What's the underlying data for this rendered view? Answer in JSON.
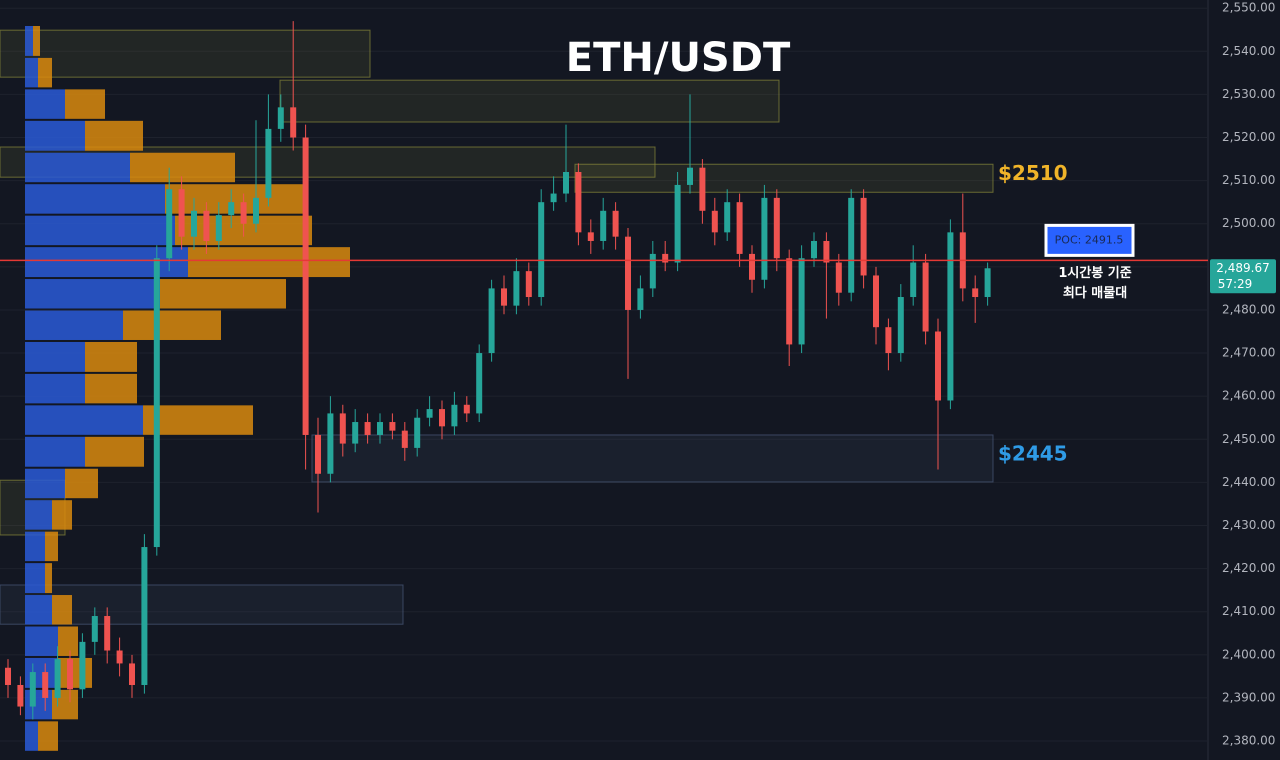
{
  "chart_data": {
    "type": "candlestick",
    "title": "ETH/USDT",
    "ylim": [
      2375.6,
      2551.9
    ],
    "yticks": [
      {
        "value": 2380,
        "label": "2,380.00"
      },
      {
        "value": 2390,
        "label": "2,390.00"
      },
      {
        "value": 2400,
        "label": "2,400.00"
      },
      {
        "value": 2410,
        "label": "2,410.00"
      },
      {
        "value": 2420,
        "label": "2,420.00"
      },
      {
        "value": 2430,
        "label": "2,430.00"
      },
      {
        "value": 2440,
        "label": "2,440.00"
      },
      {
        "value": 2450,
        "label": "2,450.00"
      },
      {
        "value": 2460,
        "label": "2,460.00"
      },
      {
        "value": 2470,
        "label": "2,470.00"
      },
      {
        "value": 2480,
        "label": "2,480.00"
      },
      {
        "value": 2490,
        "label": "2,490.00"
      },
      {
        "value": 2500,
        "label": "2,500.00"
      },
      {
        "value": 2510,
        "label": "2,510.00"
      },
      {
        "value": 2520,
        "label": "2,520.00"
      },
      {
        "value": 2530,
        "label": "2,530.00"
      },
      {
        "value": 2540,
        "label": "2,540.00"
      },
      {
        "value": 2550,
        "label": "2,550.00"
      }
    ],
    "grid": true,
    "up_color": "#26a69a",
    "down_color": "#ef5350",
    "open": [
      2397,
      2393,
      2388,
      2396,
      2390,
      2399,
      2392,
      2403,
      2409,
      2401,
      2398,
      2393,
      2425,
      2492,
      2508,
      2497,
      2503,
      2496,
      2502,
      2505,
      2500,
      2506,
      2522,
      2527,
      2520,
      2451,
      2442,
      2456,
      2449,
      2454,
      2451,
      2454,
      2452,
      2448,
      2455,
      2457,
      2453,
      2458,
      2456,
      2470,
      2485,
      2481,
      2489,
      2483,
      2505,
      2507,
      2512,
      2498,
      2496,
      2503,
      2497,
      2480,
      2485,
      2493,
      2491,
      2509,
      2513,
      2503,
      2498,
      2505,
      2493,
      2487,
      2506,
      2492,
      2472,
      2492,
      2496,
      2491,
      2484,
      2506,
      2488,
      2476,
      2470,
      2483,
      2491,
      2475,
      2459,
      2498,
      2485,
      2483
    ],
    "high": [
      2399,
      2395,
      2398,
      2398,
      2402,
      2401,
      2405,
      2411,
      2411,
      2404,
      2400,
      2428,
      2495,
      2513,
      2511,
      2506,
      2505,
      2505,
      2508,
      2507,
      2524,
      2530,
      2530,
      2547,
      2523,
      2455,
      2460,
      2458,
      2457,
      2456,
      2456,
      2456,
      2454,
      2457,
      2460,
      2459,
      2461,
      2460,
      2472,
      2487,
      2488,
      2492,
      2491,
      2508,
      2511,
      2523,
      2514,
      2501,
      2506,
      2505,
      2499,
      2488,
      2496,
      2496,
      2512,
      2530,
      2515,
      2506,
      2508,
      2507,
      2495,
      2509,
      2508,
      2494,
      2495,
      2498,
      2498,
      2493,
      2508,
      2508,
      2490,
      2478,
      2486,
      2495,
      2493,
      2478,
      2501,
      2507,
      2488,
      2491
    ],
    "low": [
      2390,
      2386,
      2385,
      2387,
      2388,
      2389,
      2390,
      2400,
      2398,
      2395,
      2390,
      2391,
      2423,
      2489,
      2494,
      2494,
      2493,
      2494,
      2499,
      2497,
      2498,
      2504,
      2519,
      2517,
      2443,
      2433,
      2440,
      2446,
      2447,
      2449,
      2449,
      2450,
      2445,
      2446,
      2453,
      2450,
      2451,
      2454,
      2454,
      2468,
      2479,
      2479,
      2481,
      2481,
      2503,
      2505,
      2495,
      2493,
      2494,
      2494,
      2464,
      2478,
      2483,
      2489,
      2489,
      2507,
      2500,
      2495,
      2496,
      2490,
      2484,
      2485,
      2489,
      2467,
      2470,
      2490,
      2478,
      2481,
      2482,
      2485,
      2472,
      2466,
      2468,
      2481,
      2472,
      2443,
      2457,
      2482,
      2477,
      2481
    ],
    "close": [
      2393,
      2388,
      2396,
      2390,
      2399,
      2392,
      2403,
      2409,
      2401,
      2398,
      2393,
      2425,
      2492,
      2508,
      2497,
      2503,
      2496,
      2502,
      2505,
      2500,
      2506,
      2522,
      2527,
      2520,
      2451,
      2442,
      2456,
      2449,
      2454,
      2451,
      2454,
      2452,
      2448,
      2455,
      2457,
      2453,
      2458,
      2456,
      2470,
      2485,
      2481,
      2489,
      2483,
      2505,
      2507,
      2512,
      2498,
      2496,
      2503,
      2497,
      2480,
      2485,
      2493,
      2491,
      2509,
      2513,
      2503,
      2498,
      2505,
      2493,
      2487,
      2506,
      2492,
      2472,
      2492,
      2496,
      2491,
      2484,
      2506,
      2488,
      2476,
      2470,
      2483,
      2491,
      2475,
      2459,
      2498,
      2485,
      2483,
      2489.67
    ],
    "volume_profile": {
      "bins": [
        2546.1,
        2538.7,
        2531.4,
        2524.1,
        2516.7,
        2509.4,
        2502.1,
        2494.8,
        2487.4,
        2480.1,
        2472.8,
        2465.4,
        2458.1,
        2450.8,
        2443.4,
        2436.1,
        2428.8,
        2421.5,
        2414.1,
        2406.8,
        2399.5,
        2392.1,
        2384.8,
        2377.5
      ],
      "buy": [
        8,
        13,
        40,
        60,
        105,
        140,
        150,
        163,
        135,
        98,
        60,
        60,
        118,
        60,
        40,
        27,
        20,
        20,
        27,
        33,
        33,
        27,
        13
      ],
      "sell": [
        7,
        14,
        40,
        58,
        105,
        140,
        137,
        162,
        126,
        98,
        52,
        52,
        110,
        59,
        33,
        20,
        13,
        7,
        20,
        20,
        34,
        26,
        20
      ],
      "buy_color": "#2a5bd7",
      "sell_color": "#d98a0e"
    },
    "zones": [
      {
        "low": 2534.0,
        "high": 2544.9,
        "color": "#8a8a3a"
      },
      {
        "low": 2523.6,
        "high": 2533.3,
        "color": "#8a8a3a"
      },
      {
        "low": 2510.8,
        "high": 2517.8,
        "color": "#8a8a3a"
      },
      {
        "low": 2507.3,
        "high": 2513.8,
        "color": "#8a8a3a"
      },
      {
        "low": 2440.1,
        "high": 2451.0,
        "color": "#4a5a7a"
      },
      {
        "low": 2427.8,
        "high": 2440.5,
        "color": "#8a8a3a"
      },
      {
        "low": 2407.1,
        "high": 2416.2,
        "color": "#4a5a7a"
      }
    ],
    "poc": {
      "value": 2491.5,
      "label": "POC: 2491.5",
      "color": "#e53935"
    },
    "poc_note": [
      "1시간봉 기준",
      "최다 매물대"
    ],
    "levels": [
      {
        "value": 2510,
        "label": "$2510",
        "color": "#f0b429"
      },
      {
        "value": 2445,
        "label": "$2445",
        "color": "#2f9be6"
      }
    ],
    "last_price": {
      "value": 2489.67,
      "label": "2,489.67"
    },
    "countdown": "57:29"
  }
}
